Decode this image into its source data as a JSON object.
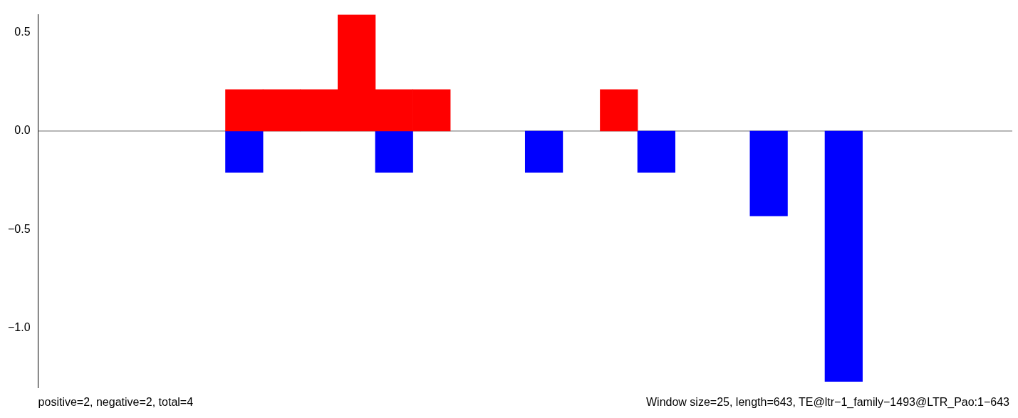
{
  "chart_data": {
    "type": "bar",
    "stacked": true,
    "categories": [
      null,
      null,
      null,
      null,
      null,
      null,
      null,
      null,
      null,
      null,
      null,
      null,
      null,
      null,
      null,
      null,
      null,
      null,
      null,
      null,
      null,
      null,
      null,
      null,
      null,
      null
    ],
    "series": [
      {
        "color": "#ff0000",
        "values": [
          null,
          null,
          null,
          null,
          null,
          0.21,
          0.21,
          0.21,
          0.59,
          0.21,
          0.21,
          null,
          null,
          null,
          null,
          0.21,
          null,
          null,
          null,
          null,
          null,
          null,
          null,
          null,
          null,
          null
        ]
      },
      {
        "color": "#0000ff",
        "values": [
          null,
          null,
          null,
          null,
          null,
          -0.21,
          null,
          null,
          null,
          -0.21,
          null,
          null,
          null,
          -0.21,
          null,
          null,
          -0.21,
          null,
          null,
          -0.43,
          null,
          -1.27,
          null,
          null,
          null,
          null
        ]
      }
    ],
    "ylim": [
      -1.3,
      0.59
    ],
    "yticks": [
      {
        "value": -1,
        "label": "−1.0"
      },
      {
        "value": -0.5,
        "label": "−0.5"
      },
      {
        "value": 0,
        "label": "0.0"
      },
      {
        "value": 0.5,
        "label": "0.5"
      }
    ],
    "tick_labels": "y",
    "grid": false,
    "legend": false,
    "ref_lines": [
      {
        "axis": "y",
        "value": 0,
        "color": "#6e6e6e"
      }
    ],
    "annotations": [
      "positive=2, negative=2, total=4",
      "Window size=25, length=643, TE@ltr−1_family−1493@LTR_Pao:1−643"
    ]
  }
}
